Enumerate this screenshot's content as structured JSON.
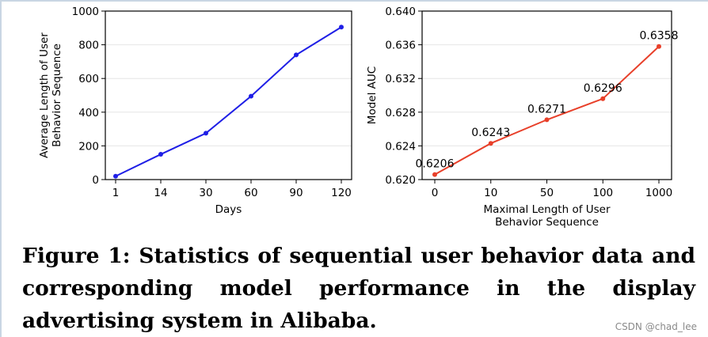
{
  "chart_data": [
    {
      "type": "line",
      "title": "",
      "xlabel": "Days",
      "ylabel": [
        "Average Length of User",
        "Behavior Sequence"
      ],
      "categories": [
        "1",
        "14",
        "30",
        "60",
        "90",
        "120"
      ],
      "series": [
        {
          "values": [
            20,
            150,
            275,
            495,
            740,
            905
          ],
          "color": "#1f1fe6"
        }
      ],
      "ylim": [
        0,
        1000
      ],
      "yticks": [
        0,
        200,
        400,
        600,
        800,
        1000
      ],
      "ytick_labels": [
        "0",
        "200",
        "400",
        "600",
        "800",
        "1000"
      ],
      "grid": true
    },
    {
      "type": "line",
      "title": "",
      "xlabel": [
        "Maximal Length of User",
        "Behavior Sequence"
      ],
      "ylabel": [
        "Model AUC"
      ],
      "categories": [
        "0",
        "10",
        "50",
        "100",
        "1000"
      ],
      "series": [
        {
          "values": [
            0.6206,
            0.6243,
            0.6271,
            0.6296,
            0.6358
          ],
          "color": "#e8402a"
        }
      ],
      "data_labels": [
        "0.6206",
        "0.6243",
        "0.6271",
        "0.6296",
        "0.6358"
      ],
      "ylim": [
        0.62,
        0.64
      ],
      "yticks": [
        0.62,
        0.624,
        0.628,
        0.632,
        0.636,
        0.64
      ],
      "ytick_labels": [
        "0.620",
        "0.624",
        "0.628",
        "0.632",
        "0.636",
        "0.640"
      ],
      "grid": true
    }
  ],
  "caption": "Figure 1: Statistics of sequential user behavior data and corresponding model performance in the display advertising system in Alibaba.",
  "watermark": "CSDN @chad_lee"
}
